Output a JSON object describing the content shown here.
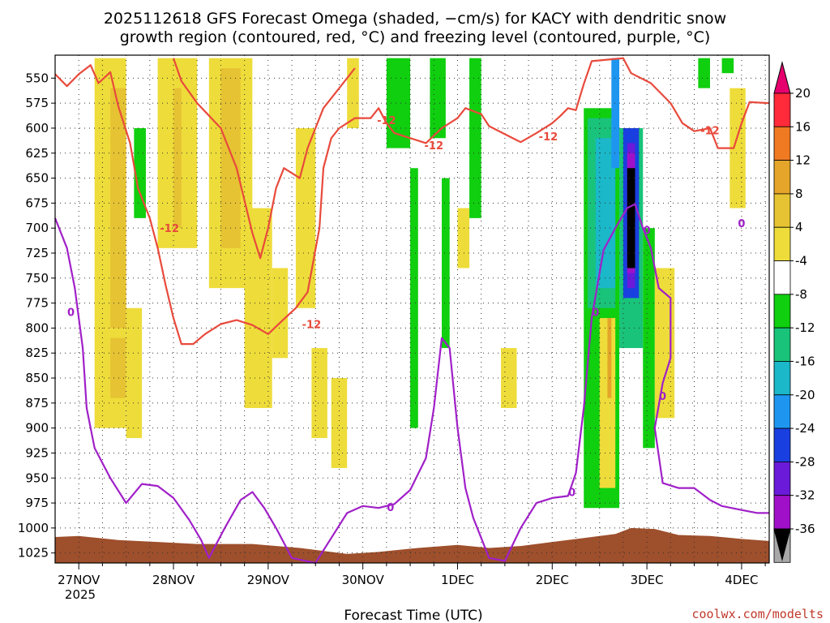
{
  "title_line1": "2025112618 GFS Forecast Omega (shaded, −cm/s) for KACY with dendritic snow",
  "title_line2": "growth region (contoured, red, °C) and freezing level (contoured, purple, °C)",
  "xlabel": "Forecast Time (UTC)",
  "credit": "coolwx.com/modelts",
  "year_label": "2025",
  "chart_data": {
    "type": "heatmap",
    "title": "2025112618 GFS Forecast Omega (shaded, −cm/s) for KACY",
    "xlabel": "Forecast Time (UTC)",
    "ylabel": "Pressure (hPa)",
    "y_ticks": [
      550,
      575,
      600,
      625,
      650,
      675,
      700,
      725,
      750,
      775,
      800,
      825,
      850,
      875,
      900,
      925,
      950,
      975,
      1000,
      1025
    ],
    "ylim": [
      1035,
      527
    ],
    "x_ticks": [
      {
        "t": 0,
        "label": "27NOV"
      },
      {
        "t": 24,
        "label": "28NOV"
      },
      {
        "t": 48,
        "label": "29NOV"
      },
      {
        "t": 72,
        "label": "30NOV"
      },
      {
        "t": 96,
        "label": "1DEC"
      },
      {
        "t": 120,
        "label": "2DEC"
      },
      {
        "t": 144,
        "label": "3DEC"
      },
      {
        "t": 168,
        "label": "4DEC"
      }
    ],
    "xlim_hours": [
      -6,
      175
    ],
    "colorbar": {
      "labels": [
        20,
        16,
        12,
        8,
        4,
        -4,
        -8,
        -12,
        -16,
        -20,
        -24,
        -28,
        -32,
        -36
      ],
      "colors": [
        "#ff2a3a",
        "#f07a22",
        "#e4a52a",
        "#e6c332",
        "#eedc3a",
        "#ffffff",
        "#0fcf0f",
        "#19c37a",
        "#1ab8c8",
        "#1e96f0",
        "#1a3fe0",
        "#6a1ad8",
        "#a010c8",
        "#a8a8a8",
        "#000000"
      ],
      "top_arrow_color": "#e6006e",
      "bottom_arrow_color": "#000000"
    },
    "shading": [
      {
        "t0": 4,
        "t1": 12,
        "p0": 530,
        "p1": 900,
        "v": 4
      },
      {
        "t0": 8,
        "t1": 12,
        "p0": 560,
        "p1": 800,
        "v": 8
      },
      {
        "t0": 8,
        "t1": 12,
        "p0": 810,
        "p1": 870,
        "v": 8
      },
      {
        "t0": 14,
        "t1": 17,
        "p0": 600,
        "p1": 690,
        "v": -8
      },
      {
        "t0": 12,
        "t1": 16,
        "p0": 780,
        "p1": 910,
        "v": 4
      },
      {
        "t0": 20,
        "t1": 30,
        "p0": 530,
        "p1": 720,
        "v": 4
      },
      {
        "t0": 24,
        "t1": 26,
        "p0": 560,
        "p1": 700,
        "v": 8
      },
      {
        "t0": 33,
        "t1": 44,
        "p0": 530,
        "p1": 760,
        "v": 4
      },
      {
        "t0": 36,
        "t1": 41,
        "p0": 540,
        "p1": 720,
        "v": 8
      },
      {
        "t0": 42,
        "t1": 49,
        "p0": 680,
        "p1": 880,
        "v": 4
      },
      {
        "t0": 49,
        "t1": 53,
        "p0": 740,
        "p1": 830,
        "v": 4
      },
      {
        "t0": 55,
        "t1": 60,
        "p0": 600,
        "p1": 780,
        "v": 4
      },
      {
        "t0": 59,
        "t1": 63,
        "p0": 820,
        "p1": 910,
        "v": 4
      },
      {
        "t0": 64,
        "t1": 68,
        "p0": 850,
        "p1": 940,
        "v": 4
      },
      {
        "t0": 68,
        "t1": 71,
        "p0": 530,
        "p1": 600,
        "v": 4
      },
      {
        "t0": 78,
        "t1": 84,
        "p0": 530,
        "p1": 620,
        "v": -8
      },
      {
        "t0": 84,
        "t1": 86,
        "p0": 640,
        "p1": 900,
        "v": -8
      },
      {
        "t0": 89,
        "t1": 93,
        "p0": 530,
        "p1": 610,
        "v": -8
      },
      {
        "t0": 92,
        "t1": 94,
        "p0": 650,
        "p1": 820,
        "v": -8
      },
      {
        "t0": 96,
        "t1": 99,
        "p0": 680,
        "p1": 740,
        "v": 4
      },
      {
        "t0": 99,
        "t1": 102,
        "p0": 530,
        "p1": 690,
        "v": -8
      },
      {
        "t0": 107,
        "t1": 111,
        "p0": 820,
        "p1": 880,
        "v": 4
      },
      {
        "t0": 128,
        "t1": 137,
        "p0": 580,
        "p1": 980,
        "v": -8
      },
      {
        "t0": 129,
        "t1": 136,
        "p0": 590,
        "p1": 780,
        "v": -12
      },
      {
        "t0": 131,
        "t1": 136,
        "p0": 610,
        "p1": 760,
        "v": -16
      },
      {
        "t0": 135,
        "t1": 137,
        "p0": 530,
        "p1": 640,
        "v": -20
      },
      {
        "t0": 132,
        "t1": 136,
        "p0": 790,
        "p1": 960,
        "v": 4
      },
      {
        "t0": 134,
        "t1": 135,
        "p0": 790,
        "p1": 870,
        "v": 12
      },
      {
        "t0": 137,
        "t1": 143,
        "p0": 600,
        "p1": 820,
        "v": -12
      },
      {
        "t0": 138,
        "t1": 142,
        "p0": 600,
        "p1": 770,
        "v": -24
      },
      {
        "t0": 139,
        "t1": 141,
        "p0": 615,
        "p1": 760,
        "v": -28
      },
      {
        "t0": 139,
        "t1": 141,
        "p0": 625,
        "p1": 745,
        "v": -32
      },
      {
        "t0": 139,
        "t1": 141,
        "p0": 640,
        "p1": 740,
        "v": -36
      },
      {
        "t0": 143,
        "t1": 146,
        "p0": 700,
        "p1": 920,
        "v": -8
      },
      {
        "t0": 146,
        "t1": 151,
        "p0": 740,
        "p1": 890,
        "v": 4
      },
      {
        "t0": 157,
        "t1": 160,
        "p0": 530,
        "p1": 560,
        "v": -8
      },
      {
        "t0": 163,
        "t1": 166,
        "p0": 530,
        "p1": 545,
        "v": -8
      },
      {
        "t0": 165,
        "t1": 169,
        "p0": 560,
        "p1": 680,
        "v": 4
      }
    ],
    "contours": [
      {
        "name": "dendritic-minus12",
        "level": -12,
        "color": "#e84a3c",
        "label": "-12",
        "label_points": [
          [
            23,
            700
          ],
          [
            59,
            796
          ],
          [
            78,
            592
          ],
          [
            90,
            617
          ],
          [
            119,
            608
          ],
          [
            160,
            602
          ]
        ],
        "points": [
          [
            -6,
            546
          ],
          [
            -3,
            558
          ],
          [
            0,
            546
          ],
          [
            3,
            537
          ],
          [
            5,
            555
          ],
          [
            8,
            544
          ],
          [
            10,
            578
          ],
          [
            13,
            615
          ],
          [
            15,
            660
          ],
          [
            18,
            690
          ],
          [
            20,
            720
          ],
          [
            22,
            757
          ],
          [
            24,
            790
          ],
          [
            26,
            816
          ],
          [
            29,
            816
          ],
          [
            32,
            806
          ],
          [
            36,
            796
          ],
          [
            40,
            792
          ],
          [
            44,
            797
          ],
          [
            48,
            806
          ],
          [
            52,
            791
          ],
          [
            55,
            780
          ],
          [
            58,
            764
          ],
          [
            61,
            700
          ],
          [
            62,
            640
          ],
          [
            64,
            610
          ],
          [
            66,
            600
          ],
          [
            70,
            590
          ],
          [
            74,
            590
          ],
          [
            76,
            580
          ],
          [
            78,
            595
          ],
          [
            80,
            605
          ],
          [
            84,
            610
          ],
          [
            88,
            615
          ],
          [
            92,
            600
          ],
          [
            96,
            590
          ],
          [
            98,
            580
          ],
          [
            102,
            586
          ],
          [
            104,
            598
          ],
          [
            108,
            606
          ],
          [
            112,
            614
          ],
          [
            116,
            605
          ],
          [
            120,
            595
          ],
          [
            122,
            588
          ],
          [
            124,
            580
          ],
          [
            126,
            582
          ],
          [
            128,
            556
          ],
          [
            130,
            533
          ],
          [
            138,
            530
          ],
          [
            140,
            545
          ],
          [
            145,
            555
          ],
          [
            150,
            575
          ],
          [
            153,
            595
          ],
          [
            156,
            603
          ],
          [
            160,
            600
          ],
          [
            162,
            620
          ],
          [
            166,
            620
          ],
          [
            168,
            595
          ],
          [
            170,
            574
          ],
          [
            175,
            575
          ]
        ]
      },
      {
        "name": "dendritic-minus12-upper",
        "level": -12,
        "color": "#e84a3c",
        "label": "",
        "label_points": [],
        "points": [
          [
            24,
            530
          ],
          [
            26,
            553
          ],
          [
            30,
            575
          ],
          [
            36,
            600
          ],
          [
            40,
            640
          ],
          [
            44,
            705
          ],
          [
            46,
            730
          ],
          [
            48,
            700
          ],
          [
            50,
            660
          ],
          [
            52,
            640
          ],
          [
            56,
            650
          ],
          [
            58,
            620
          ],
          [
            60,
            600
          ],
          [
            62,
            580
          ],
          [
            66,
            560
          ],
          [
            70,
            540
          ]
        ]
      },
      {
        "name": "freezing-level-0",
        "level": 0,
        "color": "#a020c8",
        "label": "0",
        "label_points": [
          [
            -2,
            784
          ],
          [
            79,
            979
          ],
          [
            125,
            964
          ],
          [
            131,
            784
          ],
          [
            144,
            702
          ],
          [
            148,
            868
          ],
          [
            168,
            695
          ]
        ],
        "points": [
          [
            -6,
            690
          ],
          [
            -3,
            720
          ],
          [
            -1,
            760
          ],
          [
            1,
            820
          ],
          [
            2,
            880
          ],
          [
            4,
            920
          ],
          [
            8,
            950
          ],
          [
            12,
            975
          ],
          [
            16,
            956
          ],
          [
            20,
            958
          ],
          [
            24,
            970
          ],
          [
            28,
            992
          ],
          [
            31,
            1012
          ],
          [
            33,
            1030
          ],
          [
            37,
            1000
          ],
          [
            41,
            972
          ],
          [
            44,
            964
          ],
          [
            47,
            980
          ],
          [
            50,
            1000
          ],
          [
            54,
            1030
          ],
          [
            60,
            1035
          ],
          [
            64,
            1010
          ],
          [
            68,
            985
          ],
          [
            72,
            978
          ],
          [
            76,
            980
          ],
          [
            80,
            976
          ],
          [
            84,
            962
          ],
          [
            88,
            930
          ],
          [
            90,
            880
          ],
          [
            92,
            810
          ],
          [
            94,
            820
          ],
          [
            96,
            900
          ],
          [
            98,
            960
          ],
          [
            100,
            990
          ],
          [
            102,
            1010
          ],
          [
            104,
            1030
          ],
          [
            108,
            1033
          ],
          [
            112,
            1000
          ],
          [
            116,
            975
          ],
          [
            120,
            970
          ],
          [
            124,
            968
          ],
          [
            126,
            945
          ],
          [
            128,
            880
          ],
          [
            130,
            790
          ],
          [
            133,
            722
          ],
          [
            136,
            700
          ],
          [
            139,
            680
          ],
          [
            141,
            676
          ],
          [
            143,
            700
          ],
          [
            145,
            720
          ],
          [
            147,
            760
          ],
          [
            150,
            770
          ],
          [
            150,
            830
          ],
          [
            148,
            855
          ],
          [
            146,
            900
          ],
          [
            148,
            955
          ],
          [
            152,
            960
          ],
          [
            156,
            960
          ],
          [
            160,
            972
          ],
          [
            163,
            978
          ],
          [
            168,
            982
          ],
          [
            172,
            985
          ],
          [
            175,
            985
          ]
        ]
      }
    ],
    "terrain": {
      "color": "#9e4f2c",
      "surface_pressure_approx": 1015
    }
  }
}
